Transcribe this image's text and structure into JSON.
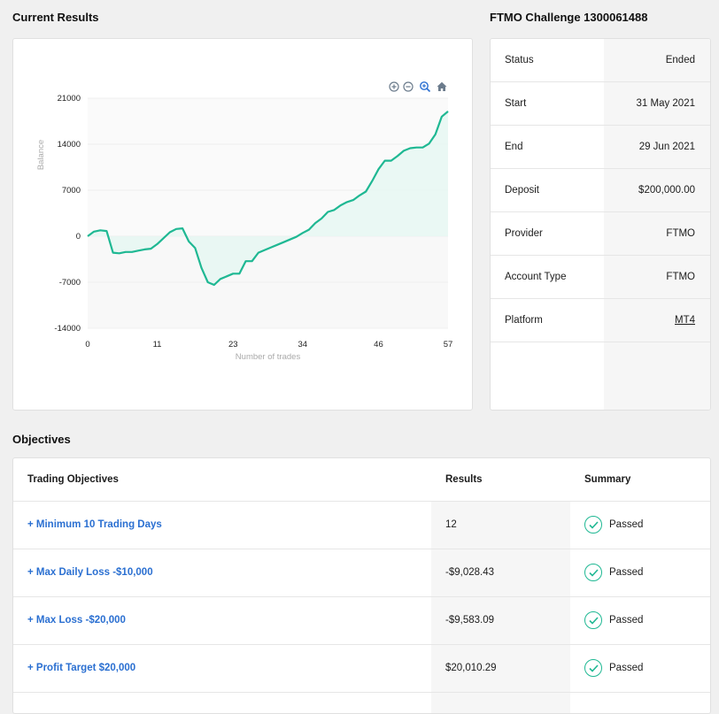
{
  "current_results": {
    "title": "Current Results"
  },
  "chart_toolbar": {
    "icons": [
      "zoom-in-icon",
      "zoom-out-icon",
      "zoom-select-icon",
      "home-icon"
    ]
  },
  "chart_data": {
    "type": "area",
    "xlabel": "Number of trades",
    "ylabel": "Balance",
    "xlim": [
      0,
      57
    ],
    "ylim": [
      -14000,
      21000
    ],
    "x_ticks": [
      0,
      11,
      23,
      34,
      46,
      57
    ],
    "y_ticks": [
      21000,
      14000,
      7000,
      0,
      -7000,
      -14000
    ],
    "colors": {
      "line": "#1fb893",
      "fill_positive": "#e6f7f2",
      "fill_negative": "#f6f6f6"
    },
    "grid": true,
    "series": [
      {
        "x": [
          0,
          1,
          2,
          3,
          4,
          5,
          6,
          7,
          8,
          9,
          10,
          11,
          12,
          13,
          14,
          15,
          16,
          17,
          18,
          19,
          20,
          21,
          22,
          23,
          24,
          25,
          26,
          27,
          28,
          29,
          30,
          31,
          32,
          33,
          34,
          35,
          36,
          37,
          38,
          39,
          40,
          41,
          42,
          43,
          44,
          45,
          46,
          47,
          48,
          49,
          50,
          51,
          52,
          53,
          54,
          55,
          56,
          57
        ],
        "y": [
          0,
          700,
          900,
          800,
          -2500,
          -2600,
          -2400,
          -2400,
          -2200,
          -2000,
          -1900,
          -1200,
          -300,
          600,
          1100,
          1200,
          -800,
          -1800,
          -4800,
          -7000,
          -7400,
          -6500,
          -6100,
          -5700,
          -5700,
          -3800,
          -3800,
          -2500,
          -2100,
          -1700,
          -1300,
          -900,
          -500,
          -100,
          500,
          1000,
          2000,
          2700,
          3700,
          4000,
          4700,
          5200,
          5500,
          6200,
          6800,
          8400,
          10200,
          11500,
          11500,
          12200,
          13000,
          13400,
          13500,
          13500,
          14100,
          15500,
          18200,
          19000
        ]
      }
    ]
  },
  "account": {
    "title": "FTMO Challenge 1300061488",
    "rows": [
      {
        "label": "Status",
        "value": "Ended"
      },
      {
        "label": "Start",
        "value": "31 May 2021"
      },
      {
        "label": "End",
        "value": "29 Jun 2021"
      },
      {
        "label": "Deposit",
        "value": "$200,000.00"
      },
      {
        "label": "Provider",
        "value": "FTMO"
      },
      {
        "label": "Account Type",
        "value": "FTMO"
      },
      {
        "label": "Platform",
        "value": "MT4"
      }
    ]
  },
  "objectives": {
    "title": "Objectives",
    "headers": {
      "name": "Trading Objectives",
      "results": "Results",
      "summary": "Summary"
    },
    "rows": [
      {
        "name": "+ Minimum 10 Trading Days",
        "result": "12",
        "summary": "Passed"
      },
      {
        "name": "+ Max Daily Loss -$10,000",
        "result": "-$9,028.43",
        "summary": "Passed"
      },
      {
        "name": "+ Max Loss -$20,000",
        "result": "-$9,583.09",
        "summary": "Passed"
      },
      {
        "name": "+ Profit Target $20,000",
        "result": "$20,010.29",
        "summary": "Passed"
      }
    ]
  }
}
